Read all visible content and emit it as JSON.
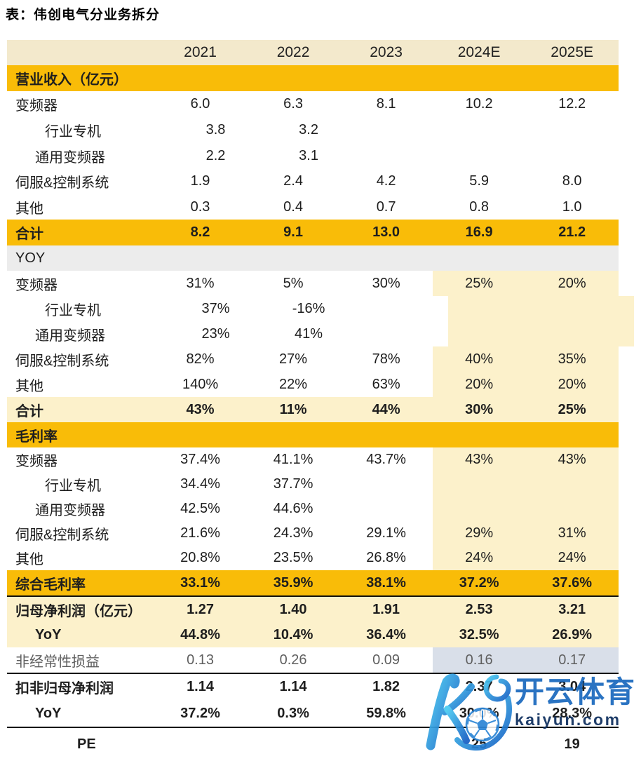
{
  "title": "表：伟创电气分业务拆分",
  "table": {
    "columns": [
      "2021",
      "2022",
      "2023",
      "2024E",
      "2025E"
    ],
    "rows": [
      {
        "label": "营业收入（亿元）",
        "values": [
          "",
          "",
          "",
          "",
          ""
        ],
        "bg": "gold",
        "bold": true,
        "section": true
      },
      {
        "label": "变频器",
        "values": [
          "6.0",
          "6.3",
          "8.1",
          "10.2",
          "12.2"
        ]
      },
      {
        "label": "行业专机",
        "values": [
          "3.8",
          "3.2",
          "",
          "",
          ""
        ],
        "indent": 2,
        "shift": true
      },
      {
        "label": "通用变频器",
        "values": [
          "2.2",
          "3.1",
          "",
          "",
          ""
        ],
        "indent": 1,
        "shift": true
      },
      {
        "label": "伺服&控制系统",
        "values": [
          "1.9",
          "2.4",
          "4.2",
          "5.9",
          "8.0"
        ]
      },
      {
        "label": "其他",
        "values": [
          "0.3",
          "0.4",
          "0.7",
          "0.8",
          "1.0"
        ]
      },
      {
        "label": "合计",
        "values": [
          "8.2",
          "9.1",
          "13.0",
          "16.9",
          "21.2"
        ],
        "bg": "gold",
        "bold": true
      },
      {
        "label": "YOY",
        "values": [
          "",
          "",
          "",
          "",
          ""
        ],
        "bg": "gray",
        "section": true
      },
      {
        "label": "变频器",
        "values": [
          "31%",
          "5%",
          "30%",
          "25%",
          "20%"
        ],
        "rightBg": "cream"
      },
      {
        "label": "行业专机",
        "values": [
          "37%",
          "-16%",
          "",
          "",
          ""
        ],
        "indent": 2,
        "shift": true,
        "rightBg": "cream"
      },
      {
        "label": "通用变频器",
        "values": [
          "23%",
          "41%",
          "",
          "",
          ""
        ],
        "indent": 1,
        "shift": true,
        "rightBg": "cream"
      },
      {
        "label": "伺服&控制系统",
        "values": [
          "82%",
          "27%",
          "78%",
          "40%",
          "35%"
        ],
        "rightBg": "cream"
      },
      {
        "label": "其他",
        "values": [
          "140%",
          "22%",
          "63%",
          "20%",
          "20%"
        ],
        "rightBg": "cream"
      },
      {
        "label": "合计",
        "values": [
          "43%",
          "11%",
          "44%",
          "30%",
          "25%"
        ],
        "bg": "cream",
        "bold": true
      },
      {
        "label": "毛利率",
        "values": [
          "",
          "",
          "",
          "",
          ""
        ],
        "bg": "gold",
        "bold": true,
        "section": true
      },
      {
        "label": "变频器",
        "values": [
          "37.4%",
          "41.1%",
          "43.7%",
          "43%",
          "43%"
        ],
        "rightBg": "cream"
      },
      {
        "label": "行业专机",
        "values": [
          "34.4%",
          "37.7%",
          "",
          "",
          ""
        ],
        "indent": 2,
        "rightBg": "cream"
      },
      {
        "label": "通用变频器",
        "values": [
          "42.5%",
          "44.6%",
          "",
          "",
          ""
        ],
        "indent": 1,
        "rightBg": "cream"
      },
      {
        "label": "伺服&控制系统",
        "values": [
          "21.6%",
          "24.3%",
          "29.1%",
          "29%",
          "31%"
        ],
        "rightBg": "cream"
      },
      {
        "label": "其他",
        "values": [
          "20.8%",
          "23.5%",
          "26.8%",
          "24%",
          "24%"
        ],
        "rightBg": "cream"
      },
      {
        "label": "综合毛利率",
        "values": [
          "33.1%",
          "35.9%",
          "38.1%",
          "37.2%",
          "37.6%"
        ],
        "bg": "gold",
        "bold": true,
        "lineBelow": true
      },
      {
        "label": "归母净利润（亿元）",
        "values": [
          "1.27",
          "1.40",
          "1.91",
          "2.53",
          "3.21"
        ],
        "bg": "cream",
        "bold": true
      },
      {
        "label": "YoY",
        "values": [
          "44.8%",
          "10.4%",
          "36.4%",
          "32.5%",
          "26.9%"
        ],
        "bg": "cream",
        "bold": true,
        "indent": 1
      },
      {
        "label": "非经常性损益",
        "values": [
          "0.13",
          "0.26",
          "0.09",
          "0.16",
          "0.17"
        ],
        "muted": true,
        "rightBg": "blue",
        "lineBelow": true
      },
      {
        "label": "扣非归母净利润",
        "values": [
          "1.14",
          "1.14",
          "1.82",
          "2.37",
          "3.04"
        ],
        "bold": true
      },
      {
        "label": "YoY",
        "values": [
          "37.2%",
          "0.3%",
          "59.8%",
          "30.0%",
          "28.3%"
        ],
        "bold": true,
        "indent": 1,
        "lineBelow": true
      },
      {
        "label": "PE",
        "values": [
          "",
          "",
          "",
          "25",
          "19"
        ],
        "bold": true,
        "indent": 3
      }
    ]
  },
  "watermark": {
    "brand": "开云体育",
    "domain": "kaiyun.com"
  },
  "colors": {
    "gold": "#F9BC08",
    "cream": "#FCF1CB",
    "headercream": "#F3E9CC",
    "grayrow": "#ECECEC",
    "bluecell": "#D9DFE9",
    "text": "#1E1E1E",
    "muted": "#5F5F5F",
    "line": "#111111",
    "wmblue": "#1A69BE",
    "wmnavy": "#0F2F5E"
  }
}
